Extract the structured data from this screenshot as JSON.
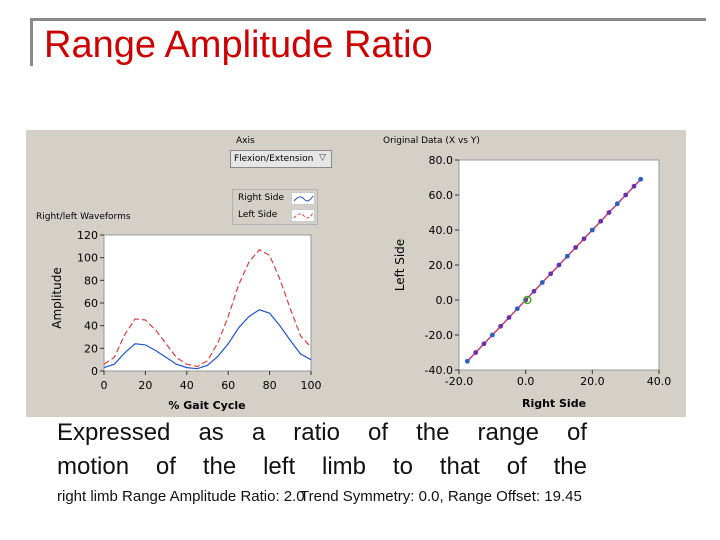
{
  "slide": {
    "title": "Range Amplitude Ratio",
    "body_lines": [
      "Expressed as a ratio of the range of",
      "motion of the left limb to that of the"
    ],
    "body_tail": "right limb",
    "footer_left": "Range Amplitude Ratio: 2.0",
    "footer_right": "Trend Symmetry: 0.0, Range Offset: 19.45"
  },
  "ui": {
    "axis_label": "Axis",
    "axis_dropdown_value": "Flexion/Extension",
    "waveforms_label": "Right/left Waveforms",
    "original_data_label": "Original Data (X vs Y)",
    "legend_right": "Right Side",
    "legend_left": "Left Side"
  },
  "colors": {
    "title": "#cc0000",
    "right_side": "#2255cc",
    "left_side": "#d94040",
    "scatter_points": "#6a32a6",
    "origin_marker": "#44aa22"
  },
  "chart_data": [
    {
      "type": "line",
      "title": "Right/left Waveforms",
      "xlabel": "% Gait Cycle",
      "ylabel": "Amplitude",
      "xlim": [
        0,
        100
      ],
      "ylim": [
        0,
        120
      ],
      "x_ticks": [
        "0",
        "20",
        "40",
        "60",
        "80",
        "100"
      ],
      "y_ticks": [
        "0",
        "20",
        "40",
        "60",
        "80",
        "100",
        "120"
      ],
      "x": [
        0,
        5,
        10,
        15,
        20,
        25,
        30,
        35,
        40,
        45,
        50,
        55,
        60,
        65,
        70,
        75,
        80,
        85,
        90,
        95,
        100
      ],
      "series": [
        {
          "name": "Right Side",
          "style": "solid",
          "values": [
            3,
            6,
            16,
            24,
            23,
            18,
            12,
            6,
            3,
            2,
            5,
            13,
            24,
            38,
            48,
            54,
            51,
            40,
            27,
            15,
            10
          ]
        },
        {
          "name": "Left Side",
          "style": "dashed",
          "values": [
            6,
            12,
            32,
            46,
            45,
            36,
            24,
            12,
            6,
            4,
            9,
            25,
            48,
            76,
            96,
            107,
            102,
            81,
            55,
            31,
            21
          ]
        }
      ]
    },
    {
      "type": "scatter",
      "title": "Original Data (X vs Y)",
      "xlabel": "Right Side",
      "ylabel": "Left Side",
      "xlim": [
        -20,
        40
      ],
      "ylim": [
        -40,
        80
      ],
      "x_ticks": [
        "-20.0",
        "0.0",
        "20.0",
        "40.0"
      ],
      "y_ticks": [
        "80.0",
        "60.0",
        "40.0",
        "20.0",
        "0.0",
        "-20.0",
        "-40.0"
      ],
      "x": [
        -17.5,
        -15,
        -12.5,
        -10,
        -7.5,
        -5,
        -2.5,
        0,
        2.5,
        5,
        7.5,
        10,
        12.5,
        15,
        17.5,
        20,
        22.5,
        25,
        27.5,
        30,
        32.5,
        34.5
      ],
      "y": [
        -35,
        -30,
        -25,
        -20,
        -15,
        -10,
        -5,
        0,
        5,
        10,
        15,
        20,
        25,
        30,
        35,
        40,
        45,
        50,
        55,
        60,
        65,
        69
      ],
      "highlight": {
        "x": 0.5,
        "y": 0.0
      }
    }
  ]
}
